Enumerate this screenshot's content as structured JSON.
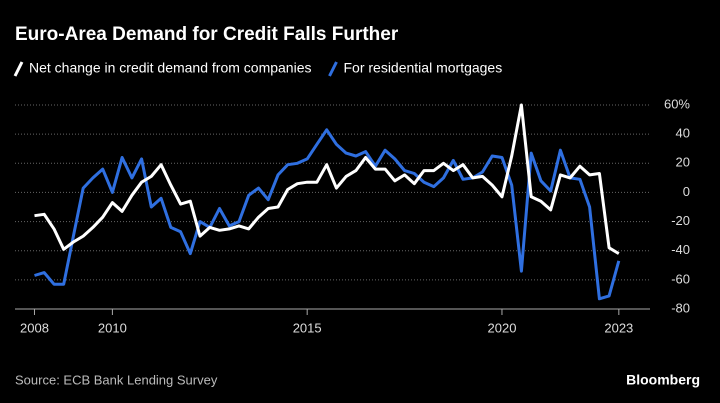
{
  "chart_data": {
    "type": "line",
    "title": "Euro-Area Demand for Credit Falls Further",
    "source": "Source: ECB Bank Lending Survey",
    "brand": "Bloomberg",
    "x": [
      2008,
      2008.25,
      2008.5,
      2008.75,
      2009,
      2009.25,
      2009.5,
      2009.75,
      2010,
      2010.25,
      2010.5,
      2010.75,
      2011,
      2011.25,
      2011.5,
      2011.75,
      2012,
      2012.25,
      2012.5,
      2012.75,
      2013,
      2013.25,
      2013.5,
      2013.75,
      2014,
      2014.25,
      2014.5,
      2014.75,
      2015,
      2015.25,
      2015.5,
      2015.75,
      2016,
      2016.25,
      2016.5,
      2016.75,
      2017,
      2017.25,
      2017.5,
      2017.75,
      2018,
      2018.25,
      2018.5,
      2018.75,
      2019,
      2019.25,
      2019.5,
      2019.75,
      2020,
      2020.25,
      2020.5,
      2020.75,
      2021,
      2021.25,
      2021.5,
      2021.75,
      2022,
      2022.25,
      2022.5,
      2022.75,
      2023
    ],
    "series": [
      {
        "name": "Net change in credit demand from companies",
        "color": "#ffffff",
        "values": [
          -16,
          -15,
          -25,
          -39,
          -34,
          -30,
          -24,
          -17,
          -7,
          -13,
          -2,
          7,
          11,
          19,
          5,
          -8,
          -6,
          -30,
          -24,
          -26,
          -25,
          -23,
          -25,
          -17,
          -11,
          -10,
          2,
          6,
          7,
          7,
          19,
          3,
          11,
          15,
          24,
          16,
          16,
          8,
          12,
          6,
          15,
          15,
          20,
          15,
          19,
          10,
          11,
          5,
          -3,
          25,
          60,
          -3,
          -6,
          -12,
          12,
          10,
          18,
          12,
          13,
          -38,
          -42
        ]
      },
      {
        "name": "For residential mortgages",
        "color": "#2f6fe0",
        "values": [
          -57,
          -55,
          -63,
          -63,
          -30,
          3,
          10,
          16,
          0,
          24,
          10,
          23,
          -10,
          -4,
          -24,
          -27,
          -42,
          -20,
          -24,
          -11,
          -23,
          -20,
          -2,
          3,
          -5,
          12,
          19,
          20,
          23,
          33,
          43,
          33,
          27,
          25,
          28,
          18,
          29,
          23,
          15,
          13,
          7,
          4,
          10,
          22,
          9,
          10,
          14,
          25,
          24,
          5,
          -54,
          27,
          8,
          1,
          29,
          10,
          9,
          -10,
          -73,
          -71,
          -47
        ]
      }
    ],
    "xlim": [
      2007.5,
      2023.8
    ],
    "xticks": [
      2008,
      2010,
      2015,
      2020,
      2023
    ],
    "ylim": [
      -80,
      60
    ],
    "yticks": [
      {
        "value": 60,
        "label": "60%"
      },
      40,
      20,
      0,
      -20,
      -40,
      -60,
      -80
    ],
    "grid": true
  }
}
